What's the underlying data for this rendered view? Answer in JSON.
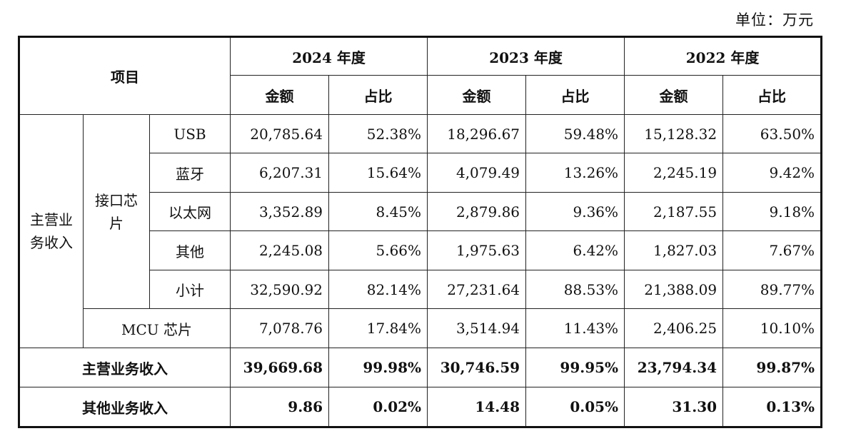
{
  "unit_label": "单位：万元",
  "header": {
    "item": "项目",
    "years": [
      "2024 年度",
      "2023 年度",
      "2022 年度"
    ],
    "amount": "金额",
    "ratio": "占比"
  },
  "groups": {
    "main_business": "主营业务收入",
    "main_business_line1": "主营业",
    "main_business_line2": "务收入",
    "interface_chip": "接口芯片",
    "interface_chip_line1": "接口芯",
    "interface_chip_line2": "片"
  },
  "rows": [
    {
      "label": "USB",
      "v": [
        "20,785.64",
        "52.38%",
        "18,296.67",
        "59.48%",
        "15,128.32",
        "63.50%"
      ]
    },
    {
      "label": "蓝牙",
      "v": [
        "6,207.31",
        "15.64%",
        "4,079.49",
        "13.26%",
        "2,245.19",
        "9.42%"
      ]
    },
    {
      "label": "以太网",
      "v": [
        "3,352.89",
        "8.45%",
        "2,879.86",
        "9.36%",
        "2,187.55",
        "9.18%"
      ]
    },
    {
      "label": "其他",
      "v": [
        "2,245.08",
        "5.66%",
        "1,975.63",
        "6.42%",
        "1,827.03",
        "7.67%"
      ]
    },
    {
      "label": "小计",
      "v": [
        "32,590.92",
        "82.14%",
        "27,231.64",
        "88.53%",
        "21,388.09",
        "89.77%"
      ]
    },
    {
      "label": "MCU 芯片",
      "v": [
        "7,078.76",
        "17.84%",
        "3,514.94",
        "11.43%",
        "2,406.25",
        "10.10%"
      ]
    },
    {
      "label": "主营业务收入",
      "v": [
        "39,669.68",
        "99.98%",
        "30,746.59",
        "99.95%",
        "23,794.34",
        "99.87%"
      ]
    },
    {
      "label": "其他业务收入",
      "v": [
        "9.86",
        "0.02%",
        "14.48",
        "0.05%",
        "31.30",
        "0.13%"
      ]
    }
  ]
}
